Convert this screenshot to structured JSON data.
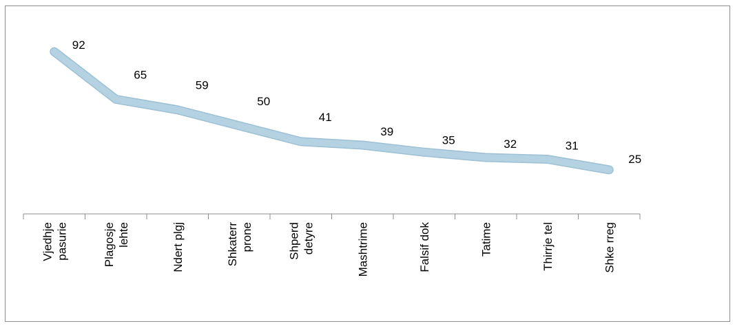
{
  "chart_data": {
    "type": "line",
    "title": "",
    "xlabel": "",
    "ylabel": "",
    "categories": [
      [
        "Vjedhje",
        "pasurie"
      ],
      [
        "Plagosje",
        "lehte"
      ],
      [
        "Ndert plgj"
      ],
      [
        "Shkaterr",
        "prone"
      ],
      [
        "Shperd",
        "detyre"
      ],
      [
        "Mashtrime"
      ],
      [
        "Falsif dok"
      ],
      [
        "Tatime"
      ],
      [
        "Thirrje tel"
      ],
      [
        "Shke rreg"
      ]
    ],
    "values": [
      92,
      65,
      59,
      50,
      41,
      39,
      35,
      32,
      31,
      25
    ],
    "ylim": [
      0,
      110
    ],
    "grid": false,
    "legend": "none",
    "series_color": "#b4d2e2",
    "series_edge_color": "#9dc0d4",
    "data_labels": true
  }
}
